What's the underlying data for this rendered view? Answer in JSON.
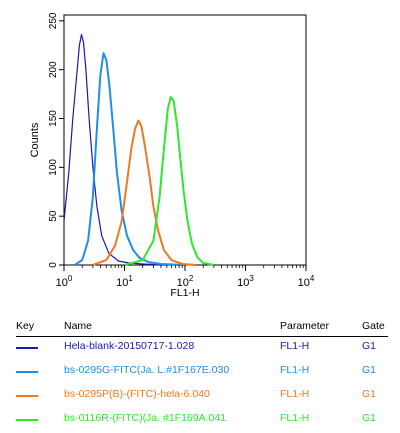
{
  "chart_data": {
    "type": "line",
    "xlabel": "FL1-H",
    "ylabel": "Counts",
    "x_scale": "log",
    "xlim": [
      1,
      10000
    ],
    "ylim": [
      0,
      256
    ],
    "y_ticks": [
      0,
      50,
      100,
      150,
      200,
      250
    ],
    "x_ticks": [
      {
        "value": 1,
        "base": "10",
        "exp": "0"
      },
      {
        "value": 10,
        "base": "10",
        "exp": "1"
      },
      {
        "value": 100,
        "base": "10",
        "exp": "2"
      },
      {
        "value": 1000,
        "base": "10",
        "exp": "3"
      },
      {
        "value": 10000,
        "base": "10",
        "exp": "4"
      }
    ],
    "series": [
      {
        "name": "Hela-blank-20150717-1.028",
        "color": "#1a1aa8",
        "x": [
          1.0,
          1.2,
          1.4,
          1.6,
          1.8,
          1.95,
          2.1,
          2.3,
          2.6,
          3.0,
          3.5,
          4.2,
          5.5,
          8,
          12,
          20,
          40,
          100
        ],
        "y": [
          45,
          95,
          150,
          190,
          225,
          236,
          228,
          200,
          150,
          100,
          60,
          30,
          12,
          4,
          2,
          1,
          0,
          0
        ]
      },
      {
        "name": "bs-0295G-FITC(Ja. L.#1F167E.030",
        "color": "#1e8fe6",
        "x": [
          1.5,
          2.0,
          2.5,
          3.0,
          3.5,
          4.0,
          4.5,
          5.0,
          5.6,
          6.5,
          7.5,
          9,
          11,
          14,
          18,
          25,
          40,
          100
        ],
        "y": [
          0,
          5,
          25,
          70,
          140,
          195,
          217,
          210,
          185,
          140,
          95,
          55,
          30,
          15,
          7,
          3,
          1,
          0
        ]
      },
      {
        "name": "bs-0295P(B)-(FITC)-hela-6.040",
        "color": "#f07820",
        "x": [
          3,
          5,
          7,
          9,
          11,
          13,
          15,
          17,
          19,
          22,
          26,
          30,
          36,
          45,
          60,
          90,
          150
        ],
        "y": [
          0,
          5,
          20,
          45,
          85,
          120,
          140,
          148,
          142,
          120,
          90,
          60,
          35,
          15,
          5,
          1,
          0
        ]
      },
      {
        "name": "bs-0116R-(FITC)(Ja. #1F169A.041",
        "color": "#2ee82e",
        "x": [
          10,
          20,
          30,
          38,
          45,
          52,
          58,
          65,
          75,
          85,
          95,
          110,
          130,
          160,
          200,
          300
        ],
        "y": [
          0,
          5,
          25,
          70,
          120,
          160,
          172,
          168,
          140,
          105,
          75,
          45,
          22,
          8,
          2,
          0
        ]
      }
    ]
  },
  "key": {
    "headers": {
      "key": "Key",
      "name": "Name",
      "parameter": "Parameter",
      "gate": "Gate"
    },
    "rows": [
      {
        "color": "#1a1aa8",
        "name": "Hela-blank-20150717-1.028",
        "parameter": "FL1-H",
        "gate": "G1"
      },
      {
        "color": "#1e8fe6",
        "name": "bs-0295G-FITC(Ja. L.#1F167E.030",
        "parameter": "FL1-H",
        "gate": "G1"
      },
      {
        "color": "#f07820",
        "name": "bs-0295P(B)-(FITC)-hela-6.040",
        "parameter": "FL1-H",
        "gate": "G1"
      },
      {
        "color": "#2ee82e",
        "name": "bs-0116R-(FITC)(Ja. #1F169A.041",
        "parameter": "FL1-H",
        "gate": "G1"
      }
    ]
  }
}
